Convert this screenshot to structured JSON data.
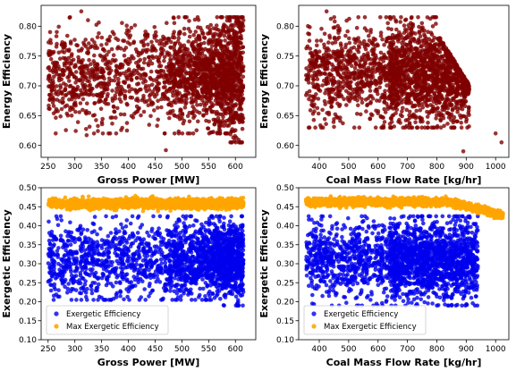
{
  "chart_data": [
    {
      "type": "scatter",
      "title": "",
      "xlabel": "Gross Power [MW]",
      "ylabel": "Energy Efficiency",
      "xlim": [
        237,
        638
      ],
      "ylim": [
        0.58,
        0.835
      ],
      "xticks": [
        250,
        300,
        350,
        400,
        450,
        500,
        550,
        600
      ],
      "yticks": [
        0.6,
        0.65,
        0.7,
        0.75,
        0.8
      ],
      "yticklabels": [
        "0.60",
        "0.65",
        "0.70",
        "0.75",
        "0.80"
      ],
      "legend": null,
      "series": [
        {
          "color": "#7f0000",
          "marker_opacity": 0.8,
          "n_points": 2200,
          "x_range": [
            250,
            615
          ],
          "y_center": 0.72,
          "y_spread": 0.045,
          "dense_region": "x 480-615, y 0.62-0.79",
          "sample_points": [
            [
              255,
              0.75
            ],
            [
              262,
              0.8
            ],
            [
              270,
              0.72
            ],
            [
              285,
              0.78
            ],
            [
              300,
              0.7
            ],
            [
              312,
              0.82
            ],
            [
              320,
              0.62
            ],
            [
              340,
              0.76
            ],
            [
              360,
              0.66
            ],
            [
              380,
              0.74
            ],
            [
              400,
              0.8
            ],
            [
              420,
              0.69
            ],
            [
              450,
              0.76
            ],
            [
              470,
              0.59
            ],
            [
              480,
              0.72
            ],
            [
              500,
              0.68
            ],
            [
              520,
              0.78
            ],
            [
              540,
              0.73
            ],
            [
              560,
              0.66
            ],
            [
              580,
              0.75
            ],
            [
              600,
              0.7
            ],
            [
              608,
              0.61
            ],
            [
              612,
              0.82
            ]
          ]
        }
      ]
    },
    {
      "type": "scatter",
      "title": "",
      "xlabel": "Coal Mass Flow Rate [kg/hr]",
      "ylabel": "Energy Efficiency",
      "xlim": [
        330,
        1045
      ],
      "ylim": [
        0.58,
        0.835
      ],
      "xticks": [
        400,
        500,
        600,
        700,
        800,
        900,
        1000
      ],
      "yticks": [
        0.6,
        0.65,
        0.7,
        0.75,
        0.8
      ],
      "yticklabels": [
        "0.60",
        "0.65",
        "0.70",
        "0.75",
        "0.80"
      ],
      "legend": null,
      "series": [
        {
          "color": "#7f0000",
          "marker_opacity": 0.8,
          "n_points": 2200,
          "x_range": [
            355,
            1025
          ],
          "y_center": 0.72,
          "y_spread": 0.045,
          "dense_region": "x 650-900, y 0.64-0.79; declining edge toward (1020, 0.61)",
          "sample_points": [
            [
              360,
              0.79
            ],
            [
              380,
              0.75
            ],
            [
              420,
              0.82
            ],
            [
              450,
              0.7
            ],
            [
              500,
              0.77
            ],
            [
              540,
              0.66
            ],
            [
              580,
              0.73
            ],
            [
              620,
              0.69
            ],
            [
              680,
              0.75
            ],
            [
              720,
              0.71
            ],
            [
              760,
              0.78
            ],
            [
              800,
              0.7
            ],
            [
              840,
              0.73
            ],
            [
              880,
              0.67
            ],
            [
              890,
              0.59
            ],
            [
              920,
              0.66
            ],
            [
              960,
              0.64
            ],
            [
              1000,
              0.62
            ],
            [
              1020,
              0.61
            ]
          ]
        }
      ]
    },
    {
      "type": "scatter",
      "title": "",
      "xlabel": "Gross Power [MW]",
      "ylabel": "Exergetic Efficiency",
      "xlim": [
        237,
        638
      ],
      "ylim": [
        0.1,
        0.5
      ],
      "xticks": [
        250,
        300,
        350,
        400,
        450,
        500,
        550,
        600
      ],
      "yticks": [
        0.1,
        0.15,
        0.2,
        0.25,
        0.3,
        0.35,
        0.4,
        0.45,
        0.5
      ],
      "yticklabels": [
        "0.10",
        "0.15",
        "0.20",
        "0.25",
        "0.30",
        "0.35",
        "0.40",
        "0.45",
        "0.50"
      ],
      "legend": "lower-left",
      "series": [
        {
          "name": "Exergetic Efficiency",
          "color": "#0000ee",
          "marker_opacity": 0.8,
          "n_points": 2200,
          "x_range": [
            250,
            615
          ],
          "y_range": [
            0.19,
            0.43
          ],
          "dense_region": "x 480-615, y 0.21-0.42"
        },
        {
          "name": "Max Exergetic Efficiency",
          "color": "#ffa500",
          "marker_opacity": 0.9,
          "n_points": 2200,
          "x_range": [
            250,
            615
          ],
          "y_range": [
            0.43,
            0.48
          ],
          "y_center": 0.458
        }
      ]
    },
    {
      "type": "scatter",
      "title": "",
      "xlabel": "Coal Mass Flow Rate [kg/hr]",
      "ylabel": "Exergetic Efficiency",
      "xlim": [
        330,
        1045
      ],
      "ylim": [
        0.1,
        0.5
      ],
      "xticks": [
        400,
        500,
        600,
        700,
        800,
        900,
        1000
      ],
      "yticks": [
        0.1,
        0.15,
        0.2,
        0.25,
        0.3,
        0.35,
        0.4,
        0.45,
        0.5
      ],
      "yticklabels": [
        "0.10",
        "0.15",
        "0.20",
        "0.25",
        "0.30",
        "0.35",
        "0.40",
        "0.45",
        "0.50"
      ],
      "legend": "lower-left",
      "series": [
        {
          "name": "Exergetic Efficiency",
          "color": "#0000ee",
          "marker_opacity": 0.8,
          "n_points": 2200,
          "x_range": [
            355,
            1025
          ],
          "y_range": [
            0.19,
            0.43
          ],
          "dense_region": "x 650-950, y 0.20-0.42"
        },
        {
          "name": "Max Exergetic Efficiency",
          "color": "#ffa500",
          "marker_opacity": 0.9,
          "n_points": 2200,
          "x_range": [
            355,
            1025
          ],
          "y_range": [
            0.42,
            0.48
          ],
          "trend": "flat ~0.46 until x≈850, then declining to ~0.425 at x≈1020"
        }
      ]
    }
  ]
}
